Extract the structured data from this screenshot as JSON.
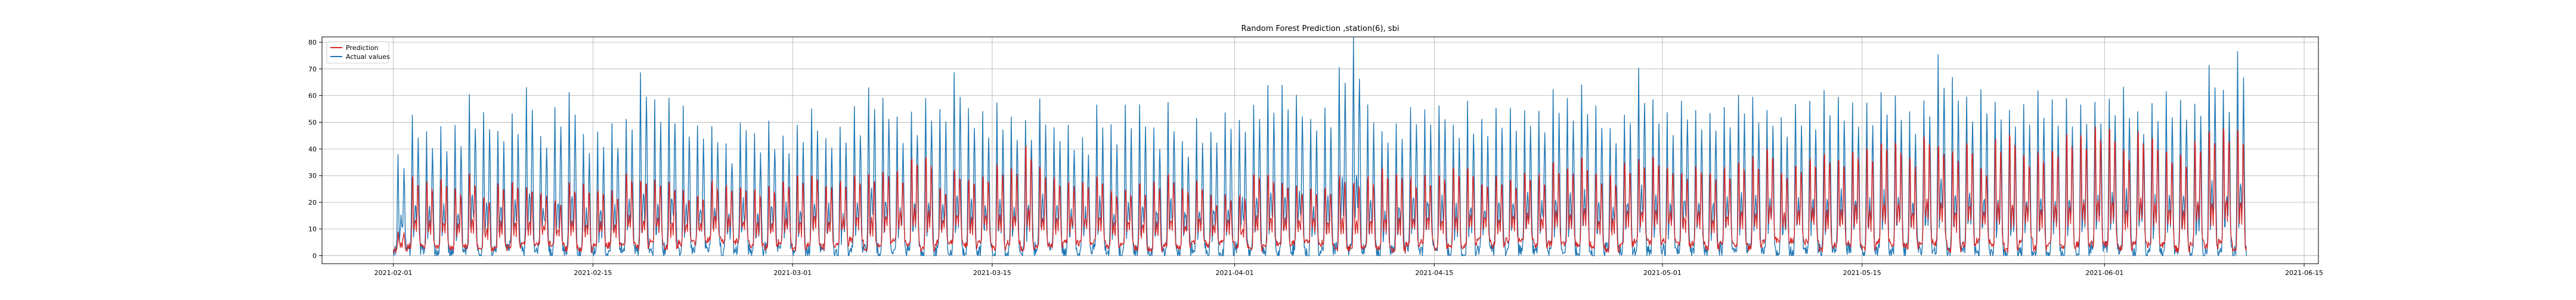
{
  "chart_data": {
    "type": "line",
    "title": "Random Forest Prediction ,station(6), sbi",
    "xlabel": "",
    "ylabel": "",
    "grid": true,
    "legend_position": "top-left",
    "x_start": "2021-02-01",
    "x_end": "2021-06-11",
    "xlim": [
      "2021-01-27",
      "2021-06-16"
    ],
    "ylim": [
      -3,
      82
    ],
    "x_ticks": [
      "2021-02-01",
      "2021-02-15",
      "2021-03-01",
      "2021-03-15",
      "2021-04-01",
      "2021-04-15",
      "2021-05-01",
      "2021-05-15",
      "2021-06-01",
      "2021-06-15"
    ],
    "y_ticks": [
      0,
      10,
      20,
      30,
      40,
      50,
      60,
      70,
      80
    ],
    "series": [
      {
        "name": "Prediction",
        "color": "#d62728",
        "daily_peaks": [
          9,
          32,
          30,
          31,
          28,
          33,
          25,
          30,
          30,
          28,
          26,
          22,
          30,
          29,
          27,
          26,
          33,
          32,
          31,
          30,
          26,
          24,
          30,
          29,
          28,
          27,
          29,
          30,
          34,
          34,
          30,
          31,
          32,
          33,
          35,
          34,
          41,
          41,
          29,
          35,
          32,
          34,
          37,
          36,
          45,
          36,
          32,
          30,
          31,
          32,
          27,
          28,
          29,
          30,
          33,
          28,
          30,
          24,
          24,
          25,
          35,
          33,
          30,
          29,
          28,
          27,
          33,
          31,
          32,
          36,
          35,
          32,
          33,
          34,
          37,
          36,
          30,
          33,
          30,
          34,
          33,
          38,
          37,
          40,
          34,
          33,
          38,
          39,
          40,
          36,
          34,
          37,
          34,
          36,
          39,
          41,
          44,
          35,
          38,
          40,
          42,
          41,
          44,
          44,
          48,
          47,
          40,
          50,
          46,
          43,
          47,
          36,
          48,
          51,
          41,
          43,
          45,
          50,
          50,
          53,
          52,
          44,
          51,
          49,
          43,
          42,
          47,
          51,
          52,
          53,
          55,
          49,
          52,
          51,
          50,
          49
        ]
      },
      {
        "name": "Actual values",
        "color": "#1f77b4",
        "daily_peaks": [
          38,
          52,
          45,
          47,
          48,
          58,
          55,
          49,
          52,
          62,
          47,
          55,
          60,
          44,
          45,
          50,
          53,
          69,
          57,
          60,
          54,
          50,
          47,
          43,
          52,
          47,
          48,
          46,
          50,
          55,
          46,
          48,
          55,
          62,
          60,
          50,
          54,
          60,
          56,
          68,
          55,
          53,
          57,
          53,
          52,
          59,
          50,
          48,
          46,
          54,
          48,
          57,
          55,
          48,
          57,
          45,
          50,
          48,
          54,
          52,
          57,
          63,
          64,
          62,
          53,
          55,
          73,
          80,
          56,
          48,
          50,
          57,
          56,
          58,
          50,
          56,
          52,
          57,
          55,
          56,
          55,
          61,
          58,
          65,
          58,
          50,
          55,
          68,
          57,
          52,
          60,
          53,
          55,
          56,
          60,
          58,
          56,
          53,
          59,
          57,
          60,
          61,
          56,
          58,
          62,
          60,
          52,
          59,
          73,
          66,
          60,
          62,
          58,
          55,
          59,
          62,
          60,
          58,
          56,
          58,
          60,
          62,
          56,
          58,
          62,
          60,
          59,
          72,
          62,
          76,
          65,
          60,
          70,
          62,
          66,
          45
        ]
      }
    ]
  }
}
